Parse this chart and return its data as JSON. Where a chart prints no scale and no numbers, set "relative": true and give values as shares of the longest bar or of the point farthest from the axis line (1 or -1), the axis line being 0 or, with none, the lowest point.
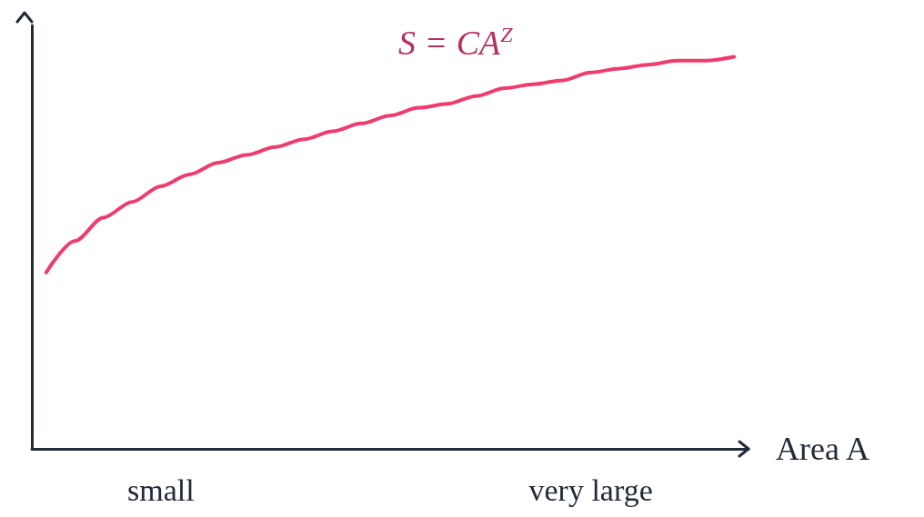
{
  "chart_data": {
    "type": "line",
    "relative": true,
    "xlabel": "Area A",
    "annotations": [
      "S = CA$^{Z}$"
    ],
    "categories": [
      null,
      null,
      null,
      null,
      "small",
      null,
      null,
      null,
      null,
      null,
      null,
      null,
      null,
      null,
      null,
      null,
      null,
      null,
      null,
      "very large",
      null,
      null,
      null,
      null,
      null
    ],
    "series": [
      {
        "color": "#ee3d6d",
        "values": [
          0.45,
          0.53,
          0.59,
          0.63,
          0.67,
          0.7,
          0.73,
          0.75,
          0.77,
          0.79,
          0.81,
          0.83,
          0.85,
          0.87,
          0.88,
          0.9,
          0.92,
          0.93,
          0.94,
          0.96,
          0.97,
          0.98,
          0.99,
          0.99,
          1
        ]
      }
    ],
    "marker": "none",
    "line_style": "solid"
  }
}
